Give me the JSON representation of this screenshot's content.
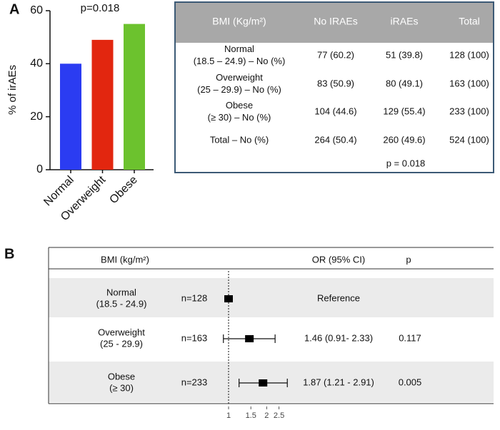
{
  "panels": [
    "A",
    "B"
  ],
  "chart_data": [
    {
      "type": "bar",
      "title": "p=0.018",
      "y_label": "% of irAEs",
      "categories": [
        "Normal",
        "Overweight",
        "Obese"
      ],
      "values": [
        40,
        49,
        55
      ],
      "colors": [
        "#2b3cf2",
        "#e2260f",
        "#6cc22e"
      ],
      "ylim": [
        0,
        60
      ],
      "yticks": [
        0,
        20,
        40,
        60
      ]
    },
    {
      "type": "forest",
      "columns": [
        "BMI (kg/m²)",
        "OR (95% CI)",
        "p"
      ],
      "rows": [
        {
          "label": [
            "Normal",
            "(18.5 - 24.9)"
          ],
          "n": "n=128"
        },
        {
          "label": [
            "Overweight",
            "(25 - 29.9)"
          ],
          "n": "n=163"
        },
        {
          "label": [
            "Obese",
            "(≥ 30)"
          ],
          "n": "n=233"
        }
      ],
      "values": [
        1,
        1.46,
        1.87
      ],
      "lower": [
        null,
        0.91,
        1.21
      ],
      "upper": [
        null,
        2.33,
        2.91
      ],
      "value_labels": [
        "Reference",
        "1.46 (0.91- 2.33)",
        "1.87 (1.21 - 2.91)"
      ],
      "p": [
        null,
        0.117,
        0.005
      ],
      "log_scale": true,
      "refline": 1,
      "xlim": [
        0.8,
        3
      ],
      "xticks": [
        1,
        1.5,
        2,
        2.5
      ]
    }
  ],
  "table": {
    "header": [
      "BMI (Kg/m²)",
      "No IRAEs",
      "iRAEs",
      "Total"
    ],
    "rows": [
      {
        "label": [
          "Normal",
          "(18.5 – 24.9) – No (%)"
        ],
        "cells": [
          "77 (60.2)",
          "51 (39.8)",
          "128 (100)"
        ]
      },
      {
        "label": [
          "Overweight",
          "(25 – 29.9) – No (%)"
        ],
        "cells": [
          "83 (50.9)",
          "80 (49.1)",
          "163 (100)"
        ]
      },
      {
        "label": [
          "Obese",
          "(≥ 30) – No (%)"
        ],
        "cells": [
          "104 (44.6)",
          "129 (55.4)",
          "233 (100)"
        ]
      },
      {
        "label": [
          "Total – No (%)"
        ],
        "cells": [
          "264 (50.4)",
          "260 (49.6)",
          "524 (100)"
        ]
      }
    ],
    "note": "p = 0.018"
  }
}
